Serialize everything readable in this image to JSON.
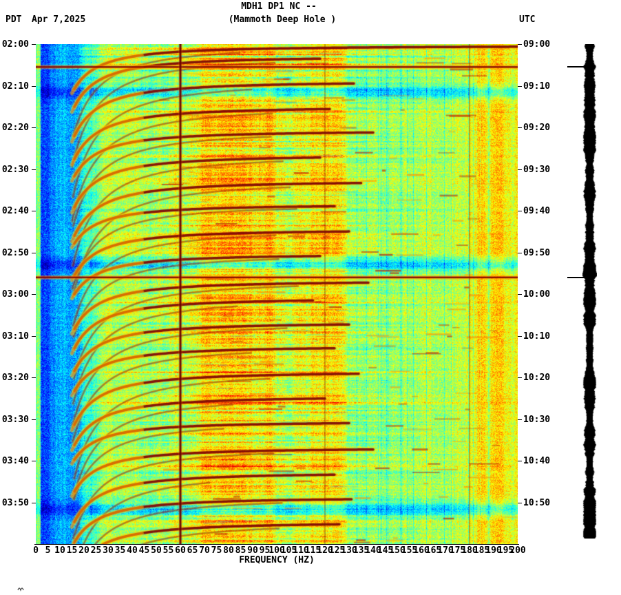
{
  "header": {
    "timezone_left": "PDT",
    "date": "Apr 7,2025",
    "title": "MDH1 DP1 NC --",
    "subtitle": "(Mammoth Deep Hole )",
    "timezone_right": "UTC"
  },
  "axes": {
    "left_times": [
      "02:00",
      "02:10",
      "02:20",
      "02:30",
      "02:40",
      "02:50",
      "03:00",
      "03:10",
      "03:20",
      "03:30",
      "03:40",
      "03:50"
    ],
    "right_times": [
      "09:00",
      "09:10",
      "09:20",
      "09:30",
      "09:40",
      "09:50",
      "10:00",
      "10:10",
      "10:20",
      "10:30",
      "10:40",
      "10:50"
    ],
    "freq_ticks": [
      0,
      5,
      10,
      15,
      20,
      25,
      30,
      35,
      40,
      45,
      50,
      55,
      60,
      65,
      70,
      75,
      80,
      85,
      90,
      95,
      100,
      105,
      110,
      115,
      120,
      125,
      130,
      135,
      140,
      145,
      150,
      155,
      160,
      165,
      170,
      175,
      180,
      185,
      190,
      195,
      200
    ],
    "xlabel": "FREQUENCY (HZ)"
  },
  "chart_data": {
    "type": "heatmap",
    "title": "MDH1 DP1 NC -- (Mammoth Deep Hole ) spectrogram",
    "xlabel": "FREQUENCY (HZ)",
    "x_range_hz": [
      0,
      200
    ],
    "time_start_pdt": "02:00",
    "time_end_pdt": "04:00",
    "time_start_utc": "09:00",
    "time_end_utc": "11:00",
    "utc_offset_hours": 7,
    "time_span_minutes": 120,
    "colormap": "jet",
    "power_line_hz": [
      60,
      120,
      180
    ],
    "earthquake_marks_minutes": [
      5.5,
      56.0
    ],
    "quiet_band_minutes": [
      11.5,
      53.0,
      111.5
    ],
    "tremor_events": [
      {
        "t": 0.4,
        "fmax": 200
      },
      {
        "t": 2.9,
        "fmax": 118
      },
      {
        "t": 8.9,
        "fmax": 132
      },
      {
        "t": 15.0,
        "fmax": 122
      },
      {
        "t": 20.8,
        "fmax": 140
      },
      {
        "t": 26.6,
        "fmax": 118
      },
      {
        "t": 32.8,
        "fmax": 135
      },
      {
        "t": 38.5,
        "fmax": 124
      },
      {
        "t": 44.5,
        "fmax": 130
      },
      {
        "t": 50.4,
        "fmax": 118
      },
      {
        "t": 56.8,
        "fmax": 138
      },
      {
        "t": 60.9,
        "fmax": 115
      },
      {
        "t": 66.8,
        "fmax": 130
      },
      {
        "t": 72.5,
        "fmax": 124
      },
      {
        "t": 78.6,
        "fmax": 134
      },
      {
        "t": 84.5,
        "fmax": 120
      },
      {
        "t": 90.6,
        "fmax": 130
      },
      {
        "t": 96.9,
        "fmax": 140
      },
      {
        "t": 102.8,
        "fmax": 124
      },
      {
        "t": 108.8,
        "fmax": 131
      },
      {
        "t": 114.7,
        "fmax": 126
      }
    ]
  }
}
